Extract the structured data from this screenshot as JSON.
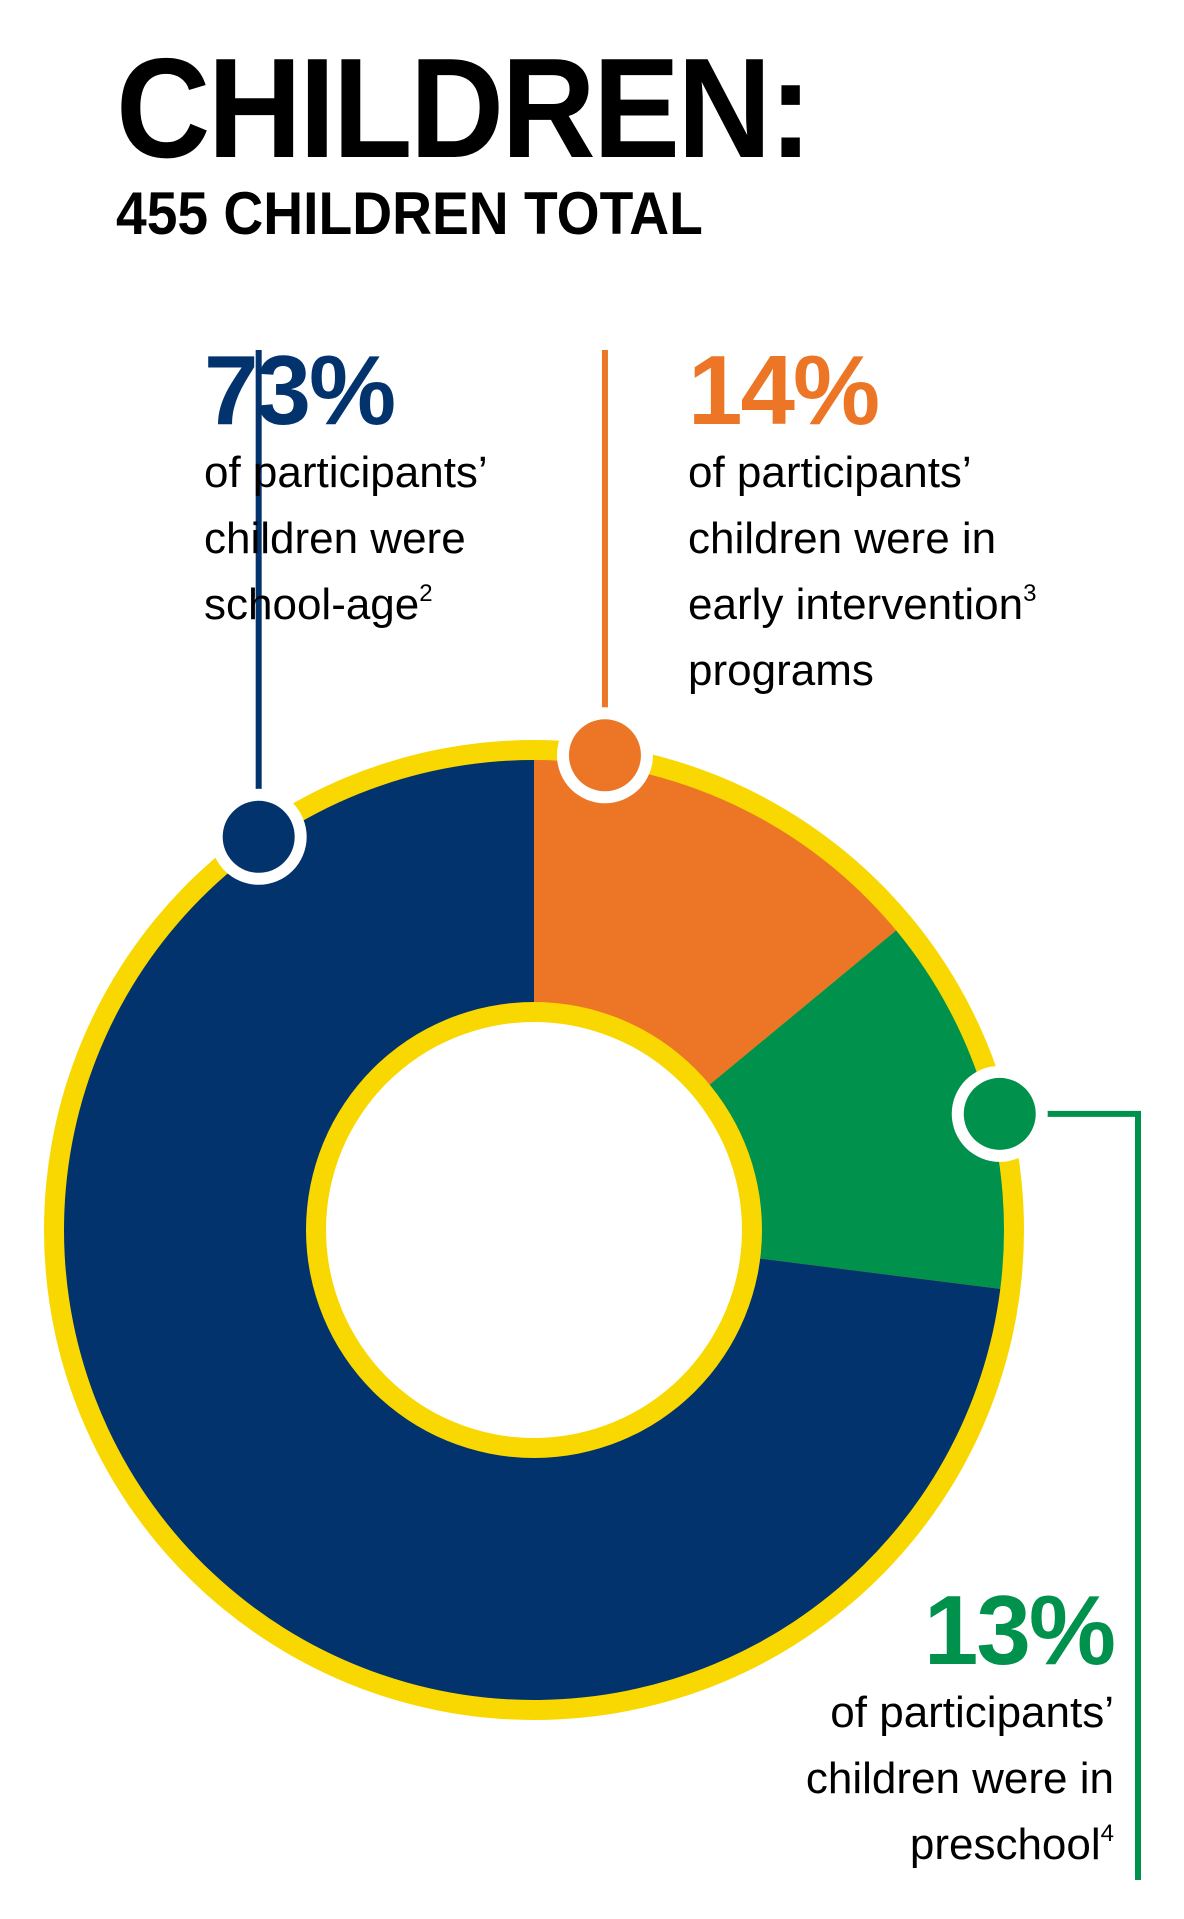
{
  "header": {
    "title": "CHILDREN:",
    "subtitle": "455 CHILDREN TOTAL"
  },
  "chart_data": {
    "type": "pie",
    "variant": "donut",
    "categories": [
      "school-age",
      "early intervention programs",
      "preschool"
    ],
    "values": [
      73,
      14,
      13
    ],
    "unit": "%",
    "total": 455,
    "colors": {
      "school-age": "#03336d",
      "early intervention programs": "#ec7625",
      "preschool": "#00914c",
      "ring": "#f8d800"
    }
  },
  "callouts": {
    "school": {
      "pct": "73%",
      "lines": [
        "of participants’",
        "children were",
        "school-age"
      ],
      "footnote": "2"
    },
    "early": {
      "pct": "14%",
      "lines": [
        "of participants’",
        "children were in",
        "early intervention",
        "programs"
      ],
      "footnote": "3"
    },
    "pre": {
      "pct": "13%",
      "lines": [
        "of participants’",
        "children were in",
        "preschool"
      ],
      "footnote": "4"
    }
  }
}
